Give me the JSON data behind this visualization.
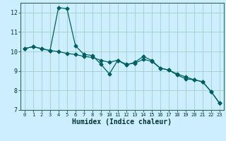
{
  "xlabel": "Humidex (Indice chaleur)",
  "x": [
    0,
    1,
    2,
    3,
    4,
    5,
    6,
    7,
    8,
    9,
    10,
    11,
    12,
    13,
    14,
    15,
    16,
    17,
    18,
    19,
    20,
    21,
    22,
    23
  ],
  "line1": [
    10.15,
    10.25,
    10.15,
    10.05,
    12.25,
    12.2,
    10.3,
    9.85,
    9.8,
    9.35,
    8.85,
    9.55,
    9.3,
    9.45,
    9.75,
    9.55,
    9.15,
    9.05,
    8.8,
    8.6,
    8.55,
    8.45,
    7.95,
    7.35
  ],
  "line2": [
    10.15,
    10.25,
    10.15,
    10.05,
    10.0,
    9.9,
    9.85,
    9.75,
    9.7,
    9.55,
    9.45,
    9.55,
    9.35,
    9.4,
    9.6,
    9.5,
    9.15,
    9.05,
    8.85,
    8.7,
    8.55,
    8.45,
    7.95,
    7.35
  ],
  "line_color": "#006060",
  "marker": "D",
  "markersize": 2.5,
  "bg_color": "#cceeff",
  "grid_color": "#99ccbb",
  "ylim": [
    7,
    12.5
  ],
  "xlim": [
    -0.5,
    23.5
  ],
  "yticks": [
    7,
    8,
    9,
    10,
    11,
    12
  ],
  "xticks": [
    0,
    1,
    2,
    3,
    4,
    5,
    6,
    7,
    8,
    9,
    10,
    11,
    12,
    13,
    14,
    15,
    16,
    17,
    18,
    19,
    20,
    21,
    22,
    23
  ],
  "xlabel_fontsize": 7,
  "tick_fontsize": 5,
  "ytick_fontsize": 6
}
